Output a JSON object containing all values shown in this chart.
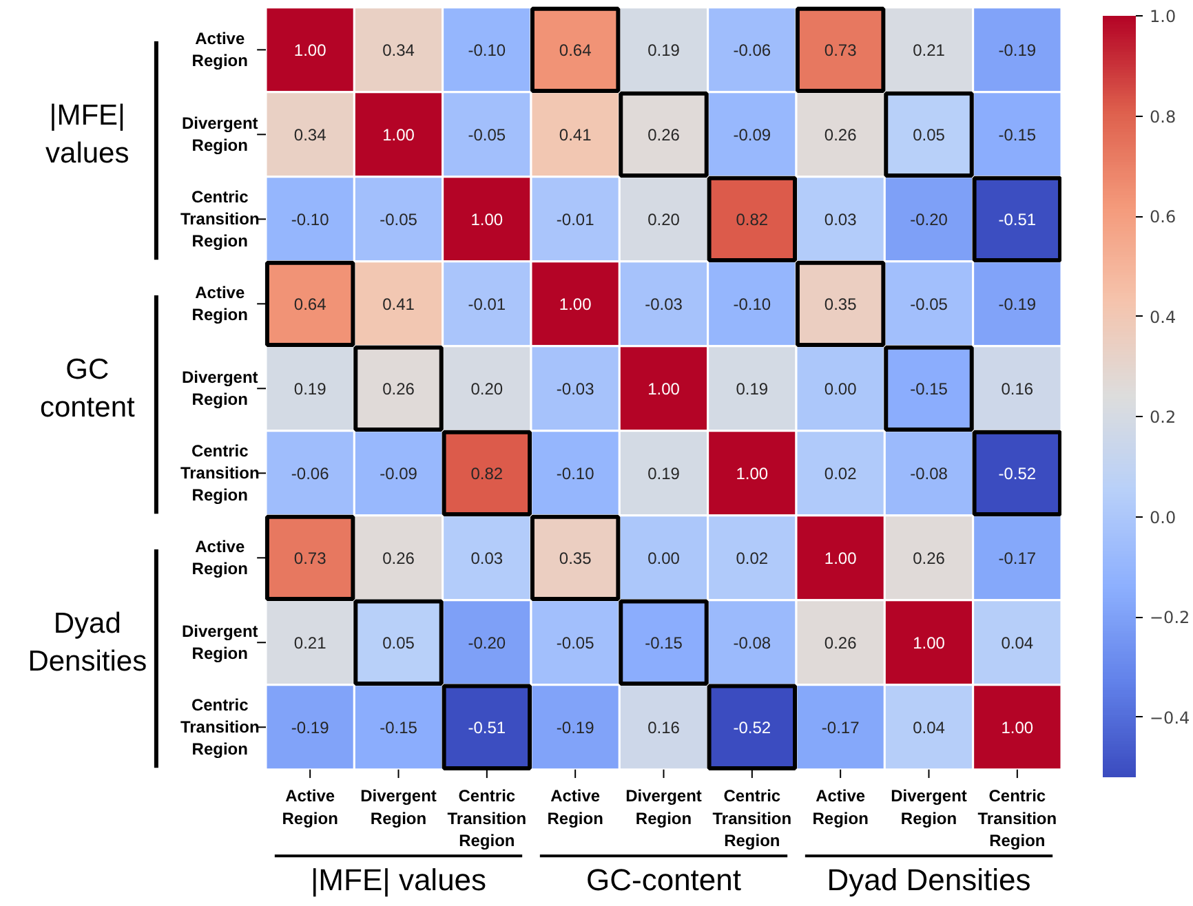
{
  "chart_data": {
    "type": "heatmap",
    "categories": [
      "Active Region",
      "Divergent Region",
      "Centric Transition Region",
      "Active Region",
      "Divergent Region",
      "Centric Transition Region",
      "Active Region",
      "Divergent Region",
      "Centric Transition Region"
    ],
    "y_categories": [
      "Active Region",
      "Divergent Region",
      "Centric Transition Region",
      "Active Region",
      "Divergent Region",
      "Centric Transition Region",
      "Active Region",
      "Divergent Region",
      "Centric Transition Region"
    ],
    "cells": [
      [
        1.0,
        0.34,
        -0.1,
        0.64,
        0.19,
        -0.06,
        0.73,
        0.21,
        -0.19
      ],
      [
        0.34,
        1.0,
        -0.05,
        0.41,
        0.26,
        -0.09,
        0.26,
        0.05,
        -0.15
      ],
      [
        -0.1,
        -0.05,
        1.0,
        -0.01,
        0.2,
        0.82,
        0.03,
        -0.2,
        -0.51
      ],
      [
        0.64,
        0.41,
        -0.01,
        1.0,
        -0.03,
        -0.1,
        0.35,
        -0.05,
        -0.19
      ],
      [
        0.19,
        0.26,
        0.2,
        -0.03,
        1.0,
        0.19,
        0.0,
        -0.15,
        0.16
      ],
      [
        -0.06,
        -0.09,
        0.82,
        -0.1,
        0.19,
        1.0,
        0.02,
        -0.08,
        -0.52
      ],
      [
        0.73,
        0.26,
        0.03,
        0.35,
        0.0,
        0.02,
        1.0,
        0.26,
        -0.17
      ],
      [
        0.21,
        0.05,
        -0.2,
        -0.05,
        -0.15,
        -0.08,
        0.26,
        1.0,
        0.04
      ],
      [
        -0.19,
        -0.15,
        -0.51,
        -0.19,
        0.16,
        -0.52,
        -0.17,
        0.04,
        1.0
      ]
    ],
    "clim": [
      -0.52,
      1.0
    ],
    "cticks": [
      {
        "value": -0.4,
        "label": "−0.4"
      },
      {
        "value": -0.2,
        "label": "−0.2"
      },
      {
        "value": 0.0,
        "label": "0.0"
      },
      {
        "value": 0.2,
        "label": "0.2"
      },
      {
        "value": 0.4,
        "label": "0.4"
      },
      {
        "value": 0.6,
        "label": "0.6"
      },
      {
        "value": 0.8,
        "label": "0.8"
      },
      {
        "value": 1.0,
        "label": "1.0"
      }
    ],
    "cell_labels": [
      [
        "1.00",
        "0.34",
        "-0.10",
        "0.64",
        "0.19",
        "-0.06",
        "0.73",
        "0.21",
        "-0.19"
      ],
      [
        "0.34",
        "1.00",
        "-0.05",
        "0.41",
        "0.26",
        "-0.09",
        "0.26",
        "0.05",
        "-0.15"
      ],
      [
        "-0.10",
        "-0.05",
        "1.00",
        "-0.01",
        "0.20",
        "0.82",
        "0.03",
        "-0.20",
        "-0.51"
      ],
      [
        "0.64",
        "0.41",
        "-0.01",
        "1.00",
        "-0.03",
        "-0.10",
        "0.35",
        "-0.05",
        "-0.19"
      ],
      [
        "0.19",
        "0.26",
        "0.20",
        "-0.03",
        "1.00",
        "0.19",
        "0.00",
        "-0.15",
        "0.16"
      ],
      [
        "-0.06",
        "-0.09",
        "0.82",
        "-0.10",
        "0.19",
        "1.00",
        "0.02",
        "-0.08",
        "-0.52"
      ],
      [
        "0.73",
        "0.26",
        "0.03",
        "0.35",
        "0.00",
        "0.02",
        "1.00",
        "0.26",
        "-0.17"
      ],
      [
        "0.21",
        "0.05",
        "-0.20",
        "-0.05",
        "-0.15",
        "-0.08",
        "0.26",
        "1.00",
        "0.04"
      ],
      [
        "-0.19",
        "-0.15",
        "-0.51",
        "-0.19",
        "0.16",
        "-0.52",
        "-0.17",
        "0.04",
        "1.00"
      ]
    ],
    "annotations": [
      "|MFE| values",
      "GC content",
      "Dyad Densities",
      "|MFE| values",
      "GC-content",
      "Dyad Densities"
    ]
  }
}
